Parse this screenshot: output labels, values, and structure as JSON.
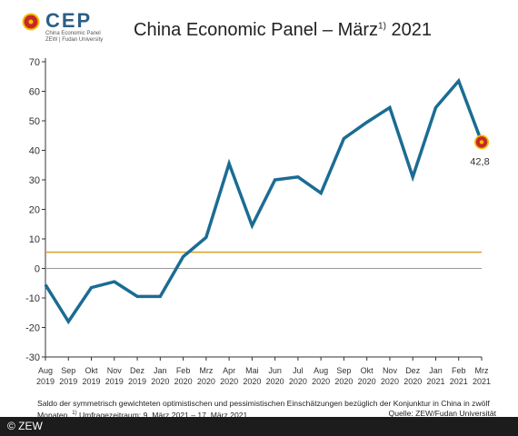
{
  "logo": {
    "name": "CEP",
    "line1": "China Economic Panel",
    "line2": "ZEW | Fudan University"
  },
  "title": {
    "main": "China Economic Panel – März",
    "sup": "1)",
    "year": "2021"
  },
  "footnote": {
    "line1": "Saldo der symmetrisch gewichteten optimistischen und pessimistischen Einschätzungen bezüglich der Konjunktur in China in zwölf",
    "line2_prefix": "Monaten.",
    "line2_sup": "1)",
    "line2_rest": "Umfragezeitraum: 9. März 2021 – 17. März 2021 .",
    "source": "Quelle: ZEW/Fudan Universität"
  },
  "copyright": "© ZEW",
  "colors": {
    "line": "#1b6c93",
    "reference_line": "#d9a020",
    "zero_line": "#999999",
    "marker_outer": "#c62828",
    "marker_ring": "#f2c200"
  },
  "chart_data": {
    "type": "line",
    "title": "China Economic Panel – März 2021",
    "xlabel": "",
    "ylabel": "",
    "ylim": [
      -30,
      70
    ],
    "yticks": [
      70,
      60,
      50,
      40,
      30,
      20,
      10,
      0,
      -10,
      -20,
      -30
    ],
    "categories": [
      {
        "month": "Aug",
        "year": "2019"
      },
      {
        "month": "Sep",
        "year": "2019"
      },
      {
        "month": "Okt",
        "year": "2019"
      },
      {
        "month": "Nov",
        "year": "2019"
      },
      {
        "month": "Dez",
        "year": "2019"
      },
      {
        "month": "Jan",
        "year": "2020"
      },
      {
        "month": "Feb",
        "year": "2020"
      },
      {
        "month": "Mrz",
        "year": "2020"
      },
      {
        "month": "Apr",
        "year": "2020"
      },
      {
        "month": "Mai",
        "year": "2020"
      },
      {
        "month": "Jun",
        "year": "2020"
      },
      {
        "month": "Jul",
        "year": "2020"
      },
      {
        "month": "Aug",
        "year": "2020"
      },
      {
        "month": "Sep",
        "year": "2020"
      },
      {
        "month": "Okt",
        "year": "2020"
      },
      {
        "month": "Nov",
        "year": "2020"
      },
      {
        "month": "Dez",
        "year": "2020"
      },
      {
        "month": "Jan",
        "year": "2021"
      },
      {
        "month": "Feb",
        "year": "2021"
      },
      {
        "month": "Mrz",
        "year": "2021"
      }
    ],
    "values": [
      -5.5,
      -18.0,
      -6.5,
      -4.5,
      -9.5,
      -9.5,
      4.0,
      10.5,
      35.5,
      14.5,
      30.0,
      31.0,
      25.5,
      44.0,
      49.5,
      54.5,
      31.0,
      54.5,
      63.5,
      42.8
    ],
    "reference_value": 5.5,
    "annotations": [
      {
        "index": 19,
        "label": "42,8"
      }
    ],
    "grid": false,
    "legend": "none"
  }
}
